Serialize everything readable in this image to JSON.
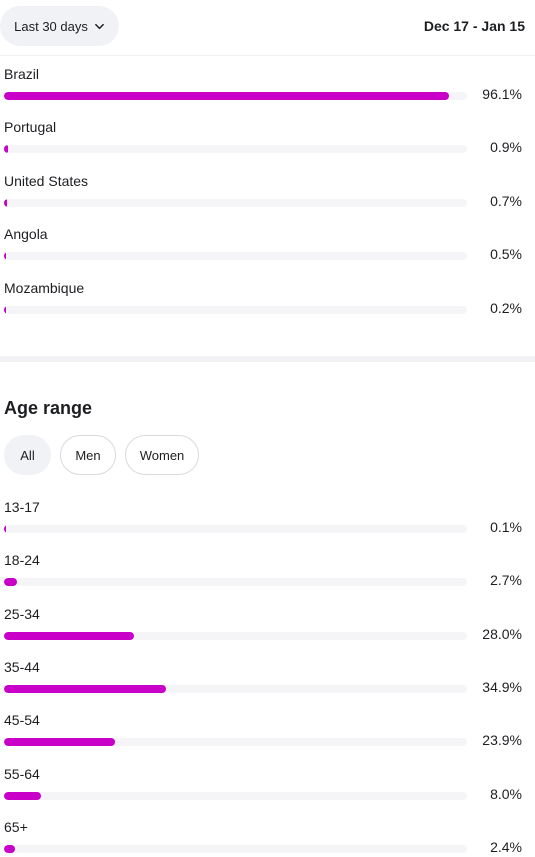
{
  "header": {
    "range_button_label": "Last 30 days",
    "date_range": "Dec 17 - Jan 15"
  },
  "countries": [
    {
      "label": "Brazil",
      "value_text": "96.1%",
      "percent": 96.1
    },
    {
      "label": "Portugal",
      "value_text": "0.9%",
      "percent": 0.9
    },
    {
      "label": "United States",
      "value_text": "0.7%",
      "percent": 0.7
    },
    {
      "label": "Angola",
      "value_text": "0.5%",
      "percent": 0.5
    },
    {
      "label": "Mozambique",
      "value_text": "0.2%",
      "percent": 0.2
    }
  ],
  "age_section": {
    "title": "Age range",
    "filters": [
      {
        "label": "All",
        "active": true
      },
      {
        "label": "Men",
        "active": false
      },
      {
        "label": "Women",
        "active": false
      }
    ],
    "ranges": [
      {
        "label": "13-17",
        "value_text": "0.1%",
        "percent": 0.1
      },
      {
        "label": "18-24",
        "value_text": "2.7%",
        "percent": 2.7
      },
      {
        "label": "25-34",
        "value_text": "28.0%",
        "percent": 28.0
      },
      {
        "label": "35-44",
        "value_text": "34.9%",
        "percent": 34.9
      },
      {
        "label": "45-54",
        "value_text": "23.9%",
        "percent": 23.9
      },
      {
        "label": "55-64",
        "value_text": "8.0%",
        "percent": 8.0
      },
      {
        "label": "65+",
        "value_text": "2.4%",
        "percent": 2.4
      }
    ]
  },
  "colors": {
    "bar_fill": "#c800c8",
    "bar_track": "#f5f5f7",
    "chip_active_bg": "#f0f2f5"
  },
  "icons": {
    "range_button": "chevron-down-icon"
  }
}
